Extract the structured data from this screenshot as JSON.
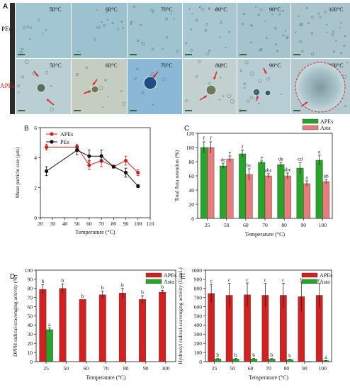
{
  "figure": {
    "panel_letters": [
      "A",
      "B",
      "C",
      "D",
      "E"
    ]
  },
  "micrographs": {
    "row_labels": [
      "PEs",
      "APEs"
    ],
    "temperatures": [
      "50°C",
      "60°C",
      "70°C",
      "80°C",
      "90°C",
      "100°C"
    ],
    "colors": {
      "pes_bg": "#9fc2cf",
      "apes_bg": "#b7cad0",
      "arrow": "#e0282c",
      "label_apes": "#d62a2a"
    }
  },
  "colors": {
    "red": "#d32020",
    "green": "#27a52b",
    "black": "#111111",
    "asta_c": "#e87b7b"
  },
  "chart_data": [
    {
      "id": "B",
      "type": "line",
      "xlabel": "Temperature (°C)",
      "ylabel": "Mean particle size (μm)",
      "xlim": [
        20,
        110
      ],
      "ylim": [
        0,
        6
      ],
      "xticks": [
        20,
        30,
        40,
        50,
        60,
        70,
        80,
        90,
        100,
        110
      ],
      "yticks": [
        0,
        2,
        4,
        6
      ],
      "legend": "top-left",
      "series": [
        {
          "name": "APEs",
          "color": "#d32020",
          "x": [
            25,
            50,
            60,
            70,
            80,
            90,
            100
          ],
          "y": [
            4.7,
            4.7,
            3.5,
            3.8,
            3.4,
            3.8,
            3.0
          ],
          "err": [
            0.2,
            0.2,
            0.3,
            0.4,
            0.1,
            0.3,
            0.2
          ]
        },
        {
          "name": "PEs",
          "color": "#111111",
          "x": [
            25,
            50,
            60,
            70,
            80,
            90,
            100
          ],
          "y": [
            3.1,
            4.5,
            4.1,
            4.1,
            3.4,
            3.0,
            2.1
          ],
          "err": [
            0.3,
            0.3,
            0.4,
            0.4,
            0.1,
            0.3,
            0.1
          ]
        }
      ]
    },
    {
      "id": "C",
      "type": "bar",
      "xlabel": "Temperature (°C)",
      "ylabel": "Total Asta retention (%)",
      "categories": [
        "25",
        "50",
        "60",
        "70",
        "80",
        "90",
        "100"
      ],
      "ylim": [
        0,
        120
      ],
      "yticks": [
        0,
        20,
        40,
        60,
        80,
        100,
        120
      ],
      "legend": "top-right",
      "series": [
        {
          "name": "APEs",
          "color": "#27a52b",
          "values": [
            100,
            74,
            91,
            79,
            76,
            71,
            82
          ],
          "err": [
            8,
            4,
            5,
            2,
            3,
            8,
            7
          ],
          "letters": [
            "f",
            "de",
            "f",
            "e",
            "de",
            "cd",
            "e"
          ]
        },
        {
          "name": "Asta",
          "color": "#e87b7b",
          "values": [
            100,
            84,
            62,
            60,
            60,
            49,
            52
          ],
          "err": [
            8,
            4,
            8,
            3,
            4,
            4,
            3
          ],
          "letters": [
            "f",
            "e",
            "bc",
            "abc",
            "abc",
            "a",
            "ab"
          ]
        }
      ]
    },
    {
      "id": "D",
      "type": "bar",
      "xlabel": "Temperature (°C)",
      "ylabel": "DPPH radical-scavenging activity (%)",
      "categories": [
        "25",
        "50",
        "60",
        "70",
        "80",
        "90",
        "100"
      ],
      "ylim": [
        0,
        100
      ],
      "yticks": [
        0,
        10,
        20,
        30,
        40,
        50,
        60,
        70,
        80,
        90,
        100
      ],
      "legend": "top-right",
      "series": [
        {
          "name": "APEs",
          "color": "#d32020",
          "values": [
            79,
            80,
            68,
            73,
            75,
            68,
            76
          ],
          "err": [
            5,
            5,
            0,
            4,
            5,
            4,
            2
          ],
          "letters": [
            "b",
            "b",
            "b",
            "b",
            "b",
            "b",
            "b"
          ]
        },
        {
          "name": "Asta",
          "color": "#27a52b",
          "values": [
            35,
            null,
            null,
            null,
            null,
            null,
            null
          ],
          "err": [
            2,
            null,
            null,
            null,
            null,
            null,
            null
          ],
          "letters": [
            "a",
            "",
            "",
            "",
            "",
            "",
            ""
          ]
        }
      ]
    },
    {
      "id": "E",
      "type": "bar",
      "xlabel": "Temperature (°C)",
      "ylabel": "Hydroxyl radical-scavenging activity (U/mL)",
      "categories": [
        "25",
        "50",
        "60",
        "70",
        "80",
        "90",
        "100"
      ],
      "ylim": [
        0,
        1000
      ],
      "yticks": [
        0,
        100,
        200,
        300,
        400,
        500,
        600,
        700,
        800,
        900,
        1000
      ],
      "legend": "top-right",
      "series": [
        {
          "name": "APEs",
          "color": "#d32020",
          "values": [
            745,
            725,
            730,
            725,
            725,
            710,
            725
          ],
          "err": [
            100,
            130,
            130,
            130,
            130,
            160,
            130
          ],
          "letters": [
            "c",
            "c",
            "c",
            "c",
            "c",
            "c",
            "c"
          ]
        },
        {
          "name": "Asta",
          "color": "#27a52b",
          "values": [
            28,
            28,
            28,
            28,
            22,
            0,
            10
          ],
          "err": [
            5,
            5,
            5,
            5,
            5,
            0,
            3
          ],
          "letters": [
            "b",
            "b",
            "b",
            "b",
            "b",
            "",
            "a"
          ]
        }
      ]
    }
  ]
}
